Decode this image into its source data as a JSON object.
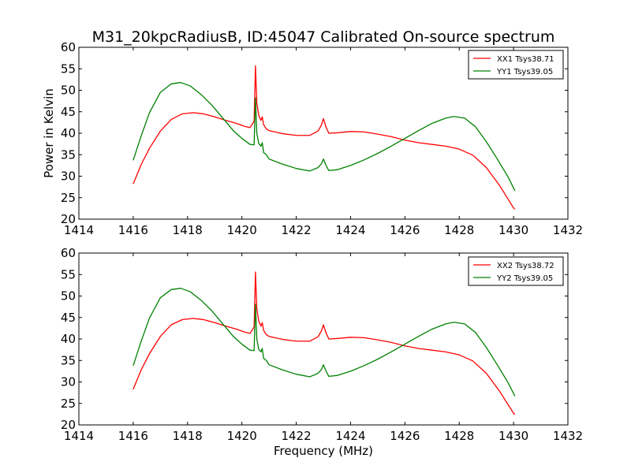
{
  "figure": {
    "title": "M31_20kpcRadiusB, ID:45047 Calibrated On-source spectrum"
  },
  "chart_data": [
    {
      "type": "line",
      "title": "M31_20kpcRadiusB, ID:45047 Calibrated On-source spectrum",
      "xlabel": "",
      "ylabel": "Power in Kelvin",
      "xlim": [
        1414,
        1432
      ],
      "ylim": [
        20,
        60
      ],
      "xticks": [
        "1414",
        "1416",
        "1418",
        "1420",
        "1422",
        "1424",
        "1426",
        "1428",
        "1430",
        "1432"
      ],
      "yticks": [
        "20",
        "25",
        "30",
        "35",
        "40",
        "45",
        "50",
        "55",
        "60"
      ],
      "grid": false,
      "legend_position": "top-right",
      "series": [
        {
          "name": "XX1 Tsys38.71",
          "color": "#ff0000",
          "x": [
            1416.0,
            1416.3,
            1416.6,
            1417.0,
            1417.4,
            1417.8,
            1418.2,
            1418.6,
            1419.0,
            1419.4,
            1419.8,
            1420.1,
            1420.3,
            1420.45,
            1420.5,
            1420.55,
            1420.62,
            1420.7,
            1420.75,
            1420.8,
            1420.9,
            1421.0,
            1421.5,
            1422.0,
            1422.5,
            1422.8,
            1422.93,
            1423.0,
            1423.1,
            1423.2,
            1423.5,
            1424.0,
            1424.5,
            1425.0,
            1425.5,
            1426.0,
            1426.5,
            1427.0,
            1427.5,
            1428.0,
            1428.5,
            1429.0,
            1429.5,
            1430.0,
            1430.05
          ],
          "y": [
            28.2,
            32.8,
            36.5,
            40.5,
            43.2,
            44.5,
            44.8,
            44.5,
            43.8,
            43.0,
            42.3,
            41.6,
            41.3,
            42.8,
            55.7,
            47.0,
            44.2,
            43.0,
            43.8,
            42.0,
            41.0,
            40.6,
            39.9,
            39.5,
            39.5,
            40.5,
            41.9,
            43.4,
            41.4,
            40.0,
            40.1,
            40.4,
            40.3,
            39.8,
            39.2,
            38.4,
            37.8,
            37.4,
            37.0,
            36.3,
            34.9,
            32.0,
            27.7,
            22.6,
            22.3
          ]
        },
        {
          "name": "YY1 Tsys39.05",
          "color": "#008000",
          "x": [
            1416.0,
            1416.3,
            1416.6,
            1417.0,
            1417.4,
            1417.75,
            1418.1,
            1418.5,
            1418.9,
            1419.3,
            1419.7,
            1420.0,
            1420.3,
            1420.45,
            1420.5,
            1420.55,
            1420.62,
            1420.7,
            1420.75,
            1420.8,
            1420.9,
            1421.0,
            1421.5,
            1422.0,
            1422.5,
            1422.8,
            1422.93,
            1423.0,
            1423.1,
            1423.2,
            1423.5,
            1424.0,
            1424.5,
            1425.0,
            1425.5,
            1426.0,
            1426.5,
            1427.0,
            1427.5,
            1427.8,
            1428.2,
            1428.6,
            1429.0,
            1429.4,
            1429.8,
            1430.05
          ],
          "y": [
            33.7,
            39.5,
            44.8,
            49.5,
            51.5,
            51.8,
            51.0,
            49.0,
            46.5,
            43.5,
            40.5,
            38.8,
            37.4,
            37.3,
            48.2,
            40.0,
            37.6,
            37.0,
            37.8,
            35.5,
            35.0,
            34.0,
            32.8,
            31.8,
            31.2,
            32.0,
            32.9,
            34.0,
            32.5,
            31.3,
            31.5,
            32.5,
            33.8,
            35.3,
            37.0,
            38.8,
            40.6,
            42.3,
            43.5,
            43.9,
            43.5,
            41.5,
            38.0,
            34.0,
            29.8,
            26.6
          ]
        }
      ]
    },
    {
      "type": "line",
      "title": "",
      "xlabel": "Frequency (MHz)",
      "ylabel": "",
      "xlim": [
        1414,
        1432
      ],
      "ylim": [
        20,
        60
      ],
      "xticks": [
        "1414",
        "1416",
        "1418",
        "1420",
        "1422",
        "1424",
        "1426",
        "1428",
        "1430",
        "1432"
      ],
      "yticks": [
        "20",
        "25",
        "30",
        "35",
        "40",
        "45",
        "50",
        "55",
        "60"
      ],
      "grid": false,
      "legend_position": "top-right",
      "series": [
        {
          "name": "XX2 Tsys38.72",
          "color": "#ff0000",
          "x": [
            1416.0,
            1416.3,
            1416.6,
            1417.0,
            1417.4,
            1417.8,
            1418.2,
            1418.6,
            1419.0,
            1419.4,
            1419.8,
            1420.1,
            1420.3,
            1420.45,
            1420.5,
            1420.55,
            1420.62,
            1420.7,
            1420.75,
            1420.8,
            1420.9,
            1421.0,
            1421.5,
            1422.0,
            1422.5,
            1422.8,
            1422.93,
            1423.0,
            1423.1,
            1423.2,
            1423.5,
            1424.0,
            1424.5,
            1425.0,
            1425.5,
            1426.0,
            1426.5,
            1427.0,
            1427.5,
            1428.0,
            1428.5,
            1429.0,
            1429.5,
            1430.0,
            1430.05
          ],
          "y": [
            28.3,
            32.9,
            36.6,
            40.6,
            43.3,
            44.5,
            44.8,
            44.5,
            43.8,
            43.0,
            42.3,
            41.6,
            41.3,
            42.8,
            55.6,
            47.0,
            44.2,
            43.0,
            43.8,
            42.0,
            41.0,
            40.6,
            39.9,
            39.5,
            39.5,
            40.5,
            41.9,
            43.3,
            41.4,
            40.0,
            40.1,
            40.4,
            40.3,
            39.8,
            39.2,
            38.4,
            37.8,
            37.4,
            37.0,
            36.3,
            34.9,
            32.0,
            27.7,
            22.7,
            22.4
          ]
        },
        {
          "name": "YY2 Tsys39.05",
          "color": "#008000",
          "x": [
            1416.0,
            1416.3,
            1416.6,
            1417.0,
            1417.4,
            1417.75,
            1418.1,
            1418.5,
            1418.9,
            1419.3,
            1419.7,
            1420.0,
            1420.3,
            1420.45,
            1420.5,
            1420.55,
            1420.62,
            1420.7,
            1420.75,
            1420.8,
            1420.9,
            1421.0,
            1421.5,
            1422.0,
            1422.5,
            1422.8,
            1422.93,
            1423.0,
            1423.1,
            1423.2,
            1423.5,
            1424.0,
            1424.5,
            1425.0,
            1425.5,
            1426.0,
            1426.5,
            1427.0,
            1427.5,
            1427.8,
            1428.2,
            1428.6,
            1429.0,
            1429.4,
            1429.8,
            1430.05
          ],
          "y": [
            33.8,
            39.6,
            44.9,
            49.6,
            51.5,
            51.8,
            51.0,
            49.0,
            46.5,
            43.5,
            40.5,
            38.8,
            37.4,
            37.3,
            48.1,
            40.0,
            37.6,
            37.0,
            37.8,
            35.5,
            35.0,
            34.0,
            32.8,
            31.8,
            31.2,
            32.0,
            32.9,
            34.0,
            32.5,
            31.3,
            31.5,
            32.5,
            33.8,
            35.3,
            37.0,
            38.8,
            40.6,
            42.3,
            43.5,
            43.9,
            43.5,
            41.5,
            38.0,
            34.0,
            29.8,
            26.7
          ]
        }
      ]
    }
  ]
}
